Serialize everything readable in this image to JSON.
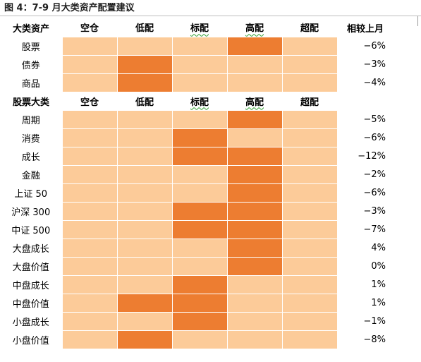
{
  "title": "图 4：7-9 月大类资产配置建议",
  "levels": [
    "空仓",
    "低配",
    "标配",
    "高配",
    "超配"
  ],
  "section1": {
    "header_label": "大类资产",
    "change_header": "相较上月",
    "rows": [
      {
        "name": "股票",
        "level": 3,
        "change": "−6%"
      },
      {
        "name": "债券",
        "level": 1,
        "change": "−3%"
      },
      {
        "name": "商品",
        "level": 1,
        "change": "−4%"
      }
    ]
  },
  "section2": {
    "header_label": "股票大类",
    "rows": [
      {
        "name": "周期",
        "level": 3,
        "change": "−5%"
      },
      {
        "name": "消费",
        "level": 2,
        "change": "−6%"
      },
      {
        "name": "成长",
        "level": [
          2,
          3
        ],
        "change": "−12%"
      },
      {
        "name": "金融",
        "level": 3,
        "change": "−2%"
      },
      {
        "name": "上证 50",
        "level": 3,
        "change": "−6%"
      },
      {
        "name": "沪深 300",
        "level": [
          2,
          3
        ],
        "change": "−3%"
      },
      {
        "name": "中证 500",
        "level": [
          2,
          3
        ],
        "change": "−7%"
      },
      {
        "name": "大盘成长",
        "level": 3,
        "change": "4%"
      },
      {
        "name": "大盘价值",
        "level": 3,
        "change": "0%"
      },
      {
        "name": "中盘成长",
        "level": 2,
        "change": "1%"
      },
      {
        "name": "中盘价值",
        "level": [
          1,
          2
        ],
        "change": "1%"
      },
      {
        "name": "小盘成长",
        "level": 2,
        "change": "−1%"
      },
      {
        "name": "小盘价值",
        "level": 1,
        "change": "−8%"
      }
    ]
  },
  "colors": {
    "low_fill": "#fccb99",
    "active_fill": "#ed7d31"
  }
}
